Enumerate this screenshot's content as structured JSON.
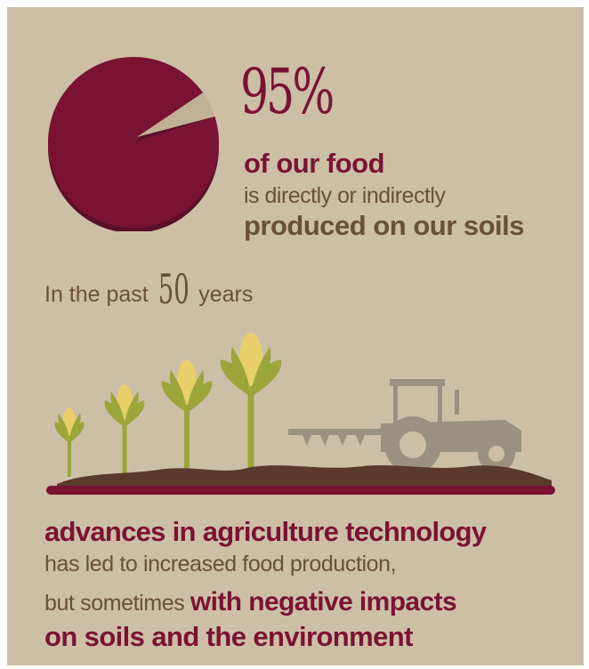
{
  "headline": {
    "percent": "95%",
    "percent_value": 95,
    "line1": "of our food",
    "line2": "is directly or indirectly",
    "line3": "produced on our soils"
  },
  "timeframe": {
    "prefix": "In the past",
    "number": "50",
    "suffix": "years"
  },
  "footer": {
    "line1": "advances in agriculture technology",
    "line2": "has led to increased food production,",
    "line3_plain": "but sometimes",
    "line3_bold": "with negative impacts",
    "line4": "on soils and the environment"
  },
  "colors": {
    "background": "#cdbfa6",
    "accent": "#7a1333",
    "text_brown": "#6b5038",
    "plant_green": "#9aa63a",
    "corn_yellow": "#e9cf6a",
    "tractor_grey": "#9a9181",
    "soil_dark": "#5a3a2c"
  },
  "icons": [
    "pie-chart-icon",
    "corn-plant-icon",
    "tractor-icon",
    "plough-icon",
    "soil-icon"
  ]
}
